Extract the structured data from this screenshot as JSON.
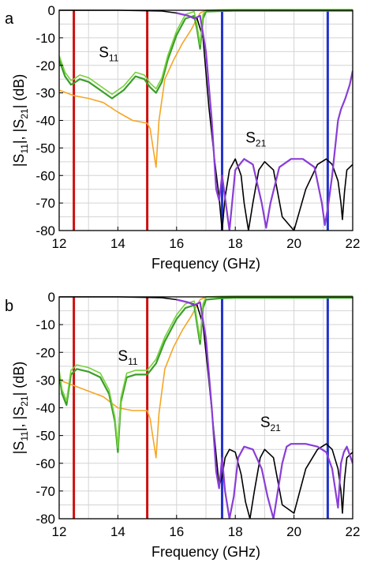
{
  "figure": {
    "panel_labels": [
      "a",
      "b"
    ]
  },
  "chart_data": [
    {
      "type": "line",
      "panel": "a",
      "xlabel": "Frequency (GHz)",
      "ylabel": "|S11|, |S21| (dB)",
      "xlim": [
        12,
        22
      ],
      "ylim": [
        -80,
        0
      ],
      "xticks": [
        12,
        14,
        16,
        18,
        20,
        22
      ],
      "yticks": [
        0,
        -10,
        -20,
        -30,
        -40,
        -50,
        -60,
        -70,
        -80
      ],
      "grid": true,
      "annotations": [
        {
          "text": "S",
          "sub": "11",
          "x": 13.35,
          "y": -17
        },
        {
          "text": "S",
          "sub": "21",
          "x": 18.35,
          "y": -48
        }
      ],
      "vlines": [
        {
          "x": 12.5,
          "color": "#cc1111"
        },
        {
          "x": 15.0,
          "color": "#cc1111"
        },
        {
          "x": 17.55,
          "color": "#2233cc"
        },
        {
          "x": 21.15,
          "color": "#2233cc"
        }
      ],
      "series": [
        {
          "color": "#f5a623",
          "width": 1.6,
          "x": [
            12,
            12.5,
            13,
            13.5,
            14,
            14.5,
            15,
            15.1,
            15.2,
            15.3,
            15.4,
            15.6,
            15.9,
            16.2,
            16.5,
            16.6,
            16.7,
            16.8,
            17,
            18,
            20,
            22
          ],
          "y": [
            -29,
            -31,
            -32,
            -33.5,
            -37,
            -40,
            -41,
            -43,
            -50,
            -57,
            -40,
            -25,
            -18,
            -12,
            -7,
            -5,
            -3,
            -1,
            0,
            0,
            0,
            0
          ]
        },
        {
          "color": "#000000",
          "width": 1.6,
          "x": [
            12,
            14,
            15.5,
            16,
            16.4,
            16.7,
            16.9,
            17.1,
            17.3,
            17.45,
            17.55,
            17.65,
            17.8,
            18,
            18.2,
            18.3,
            18.45,
            18.6,
            18.8,
            19,
            19.3,
            19.6,
            20,
            20.4,
            20.8,
            21.1,
            21.3,
            21.5,
            21.6,
            21.65,
            21.72,
            21.8,
            22
          ],
          "y": [
            0,
            0,
            -0.3,
            -1,
            -2,
            -3,
            -10,
            -35,
            -55,
            -68,
            -80,
            -68,
            -58,
            -54,
            -60,
            -70,
            -80,
            -70,
            -58,
            -55,
            -58,
            -75,
            -80,
            -65,
            -56,
            -54,
            -56,
            -62,
            -70,
            -76,
            -66,
            -58,
            -56
          ]
        },
        {
          "color": "#3a9e2a",
          "width": 2.2,
          "x": [
            12,
            12.2,
            12.4,
            12.5,
            12.7,
            13,
            13.4,
            13.8,
            14.2,
            14.6,
            14.9,
            15.1,
            15.3,
            15.5,
            15.7,
            16,
            16.3,
            16.6,
            16.7,
            16.8,
            16.9,
            17,
            17.5,
            18,
            20,
            22
          ],
          "y": [
            -18,
            -24,
            -27,
            -26.5,
            -25,
            -26,
            -29,
            -32,
            -29,
            -24,
            -25,
            -28,
            -30,
            -26,
            -18,
            -9,
            -3,
            -2,
            -7,
            -14,
            -3,
            -0.5,
            -0.3,
            -0.2,
            -0.2,
            -0.2
          ]
        },
        {
          "color": "#76d23c",
          "width": 1.6,
          "x": [
            12,
            12.2,
            12.4,
            12.5,
            12.7,
            13,
            13.4,
            13.8,
            14.2,
            14.6,
            14.9,
            15.1,
            15.3,
            15.5,
            15.7,
            16,
            16.3,
            16.6,
            16.7,
            16.8,
            16.9,
            17,
            17.5,
            18,
            20,
            22
          ],
          "y": [
            -16.5,
            -22.5,
            -25.5,
            -25,
            -23.5,
            -24.5,
            -27.5,
            -30.5,
            -27.5,
            -22.5,
            -23.5,
            -26.5,
            -28.5,
            -24.5,
            -16.5,
            -7.5,
            -1.5,
            -0.5,
            -5.5,
            -12.5,
            -1.5,
            0,
            0.2,
            0.3,
            0.3,
            0.3
          ]
        },
        {
          "color": "#8a3dd6",
          "width": 2.2,
          "x": [
            16,
            16.4,
            16.6,
            16.8,
            17,
            17.2,
            17.35,
            17.45,
            17.55,
            17.65,
            17.8,
            18,
            18.3,
            18.6,
            18.9,
            19.05,
            19.2,
            19.5,
            19.9,
            20.3,
            20.7,
            20.95,
            21.05,
            21.15,
            21.3,
            21.5,
            21.6,
            21.75,
            21.9,
            22
          ],
          "y": [
            -1,
            -2,
            -3,
            -2,
            -15,
            -40,
            -65,
            -69,
            -60,
            -68,
            -80,
            -58,
            -54,
            -56,
            -70,
            -79,
            -70,
            -57,
            -54,
            -54,
            -57,
            -70,
            -78,
            -72,
            -60,
            -40,
            -36,
            -32,
            -27,
            -22
          ]
        }
      ]
    },
    {
      "type": "line",
      "panel": "b",
      "xlabel": "Frequency (GHz)",
      "ylabel": "|S11|, |S21| (dB)",
      "xlim": [
        12,
        22
      ],
      "ylim": [
        -80,
        0
      ],
      "xticks": [
        12,
        14,
        16,
        18,
        20,
        22
      ],
      "yticks": [
        0,
        -10,
        -20,
        -30,
        -40,
        -50,
        -60,
        -70,
        -80
      ],
      "grid": true,
      "annotations": [
        {
          "text": "S",
          "sub": "11",
          "x": 14.0,
          "y": -23
        },
        {
          "text": "S",
          "sub": "21",
          "x": 18.85,
          "y": -47
        }
      ],
      "vlines": [
        {
          "x": 12.5,
          "color": "#cc1111"
        },
        {
          "x": 15.0,
          "color": "#cc1111"
        },
        {
          "x": 17.55,
          "color": "#2233cc"
        },
        {
          "x": 21.15,
          "color": "#2233cc"
        }
      ],
      "series": [
        {
          "color": "#f5a623",
          "width": 1.6,
          "x": [
            12,
            12.5,
            13,
            13.5,
            14,
            14.5,
            15,
            15.1,
            15.2,
            15.3,
            15.4,
            15.6,
            15.9,
            16.2,
            16.5,
            16.6,
            16.7,
            16.8,
            17,
            18,
            20,
            22
          ],
          "y": [
            -30,
            -32,
            -34,
            -36,
            -40,
            -41,
            -41,
            -44,
            -51,
            -58,
            -42,
            -26,
            -18,
            -12,
            -7,
            -5,
            -3,
            -1,
            0,
            0,
            0,
            0
          ]
        },
        {
          "color": "#000000",
          "width": 1.6,
          "x": [
            12,
            14,
            15.5,
            16,
            16.4,
            16.7,
            16.9,
            17.1,
            17.3,
            17.45,
            17.55,
            17.65,
            17.8,
            18,
            18.2,
            18.35,
            18.5,
            18.65,
            18.85,
            19,
            19.3,
            19.6,
            20,
            20.4,
            20.8,
            21.1,
            21.3,
            21.5,
            21.6,
            21.65,
            21.72,
            21.8,
            22
          ],
          "y": [
            0,
            0,
            -0.3,
            -1,
            -2,
            -3,
            -10,
            -30,
            -52,
            -68,
            -65,
            -58,
            -55,
            -56,
            -64,
            -74,
            -80,
            -70,
            -58,
            -55,
            -58,
            -75,
            -78,
            -62,
            -55,
            -53,
            -55,
            -62,
            -70,
            -78,
            -66,
            -58,
            -56
          ]
        },
        {
          "color": "#3a9e2a",
          "width": 2.2,
          "x": [
            12,
            12.1,
            12.25,
            12.4,
            12.6,
            13,
            13.4,
            13.7,
            13.9,
            14.0,
            14.1,
            14.3,
            14.6,
            15.0,
            15.3,
            15.6,
            16.0,
            16.3,
            16.6,
            16.7,
            16.8,
            16.9,
            17.0,
            17.5,
            18,
            20,
            22
          ],
          "y": [
            -28,
            -35,
            -39,
            -28,
            -26,
            -27,
            -29,
            -35,
            -45,
            -56,
            -38,
            -29,
            -28,
            -28,
            -24,
            -16,
            -8,
            -4,
            -3,
            -10,
            -17,
            -4,
            -1,
            -0.5,
            -0.3,
            -0.3,
            -0.3
          ]
        },
        {
          "color": "#76d23c",
          "width": 1.6,
          "x": [
            12,
            12.1,
            12.25,
            12.4,
            12.6,
            13,
            13.4,
            13.7,
            13.9,
            14.0,
            14.1,
            14.3,
            14.6,
            15.0,
            15.3,
            15.6,
            16.0,
            16.3,
            16.6,
            16.7,
            16.8,
            16.9,
            17.0,
            17.5,
            18,
            20,
            22
          ],
          "y": [
            -26.5,
            -33.5,
            -37.5,
            -26.5,
            -24.5,
            -25.5,
            -27.5,
            -33.5,
            -43.5,
            -54.5,
            -36.5,
            -27.5,
            -26.5,
            -26.5,
            -22.5,
            -14.5,
            -6.5,
            -2.5,
            -1.5,
            -8.5,
            -15.5,
            -2.5,
            0,
            0.2,
            0.3,
            0.3,
            0.3
          ]
        },
        {
          "color": "#8a3dd6",
          "width": 2.2,
          "x": [
            16,
            16.4,
            16.6,
            16.8,
            17,
            17.2,
            17.35,
            17.45,
            17.55,
            17.65,
            17.8,
            17.95,
            18.1,
            18.3,
            18.6,
            18.9,
            19.1,
            19.3,
            19.6,
            19.75,
            19.9,
            20.1,
            20.4,
            20.8,
            21.1,
            21.3,
            21.5,
            21.6,
            21.7,
            21.8,
            21.9,
            22
          ],
          "y": [
            -1,
            -2,
            -3,
            -2,
            -15,
            -40,
            -63,
            -69,
            -58,
            -70,
            -80,
            -72,
            -58,
            -54,
            -55,
            -62,
            -72,
            -80,
            -60,
            -54,
            -53,
            -53,
            -53,
            -54,
            -56,
            -62,
            -76,
            -60,
            -56,
            -54,
            -57,
            -60
          ]
        }
      ]
    }
  ]
}
